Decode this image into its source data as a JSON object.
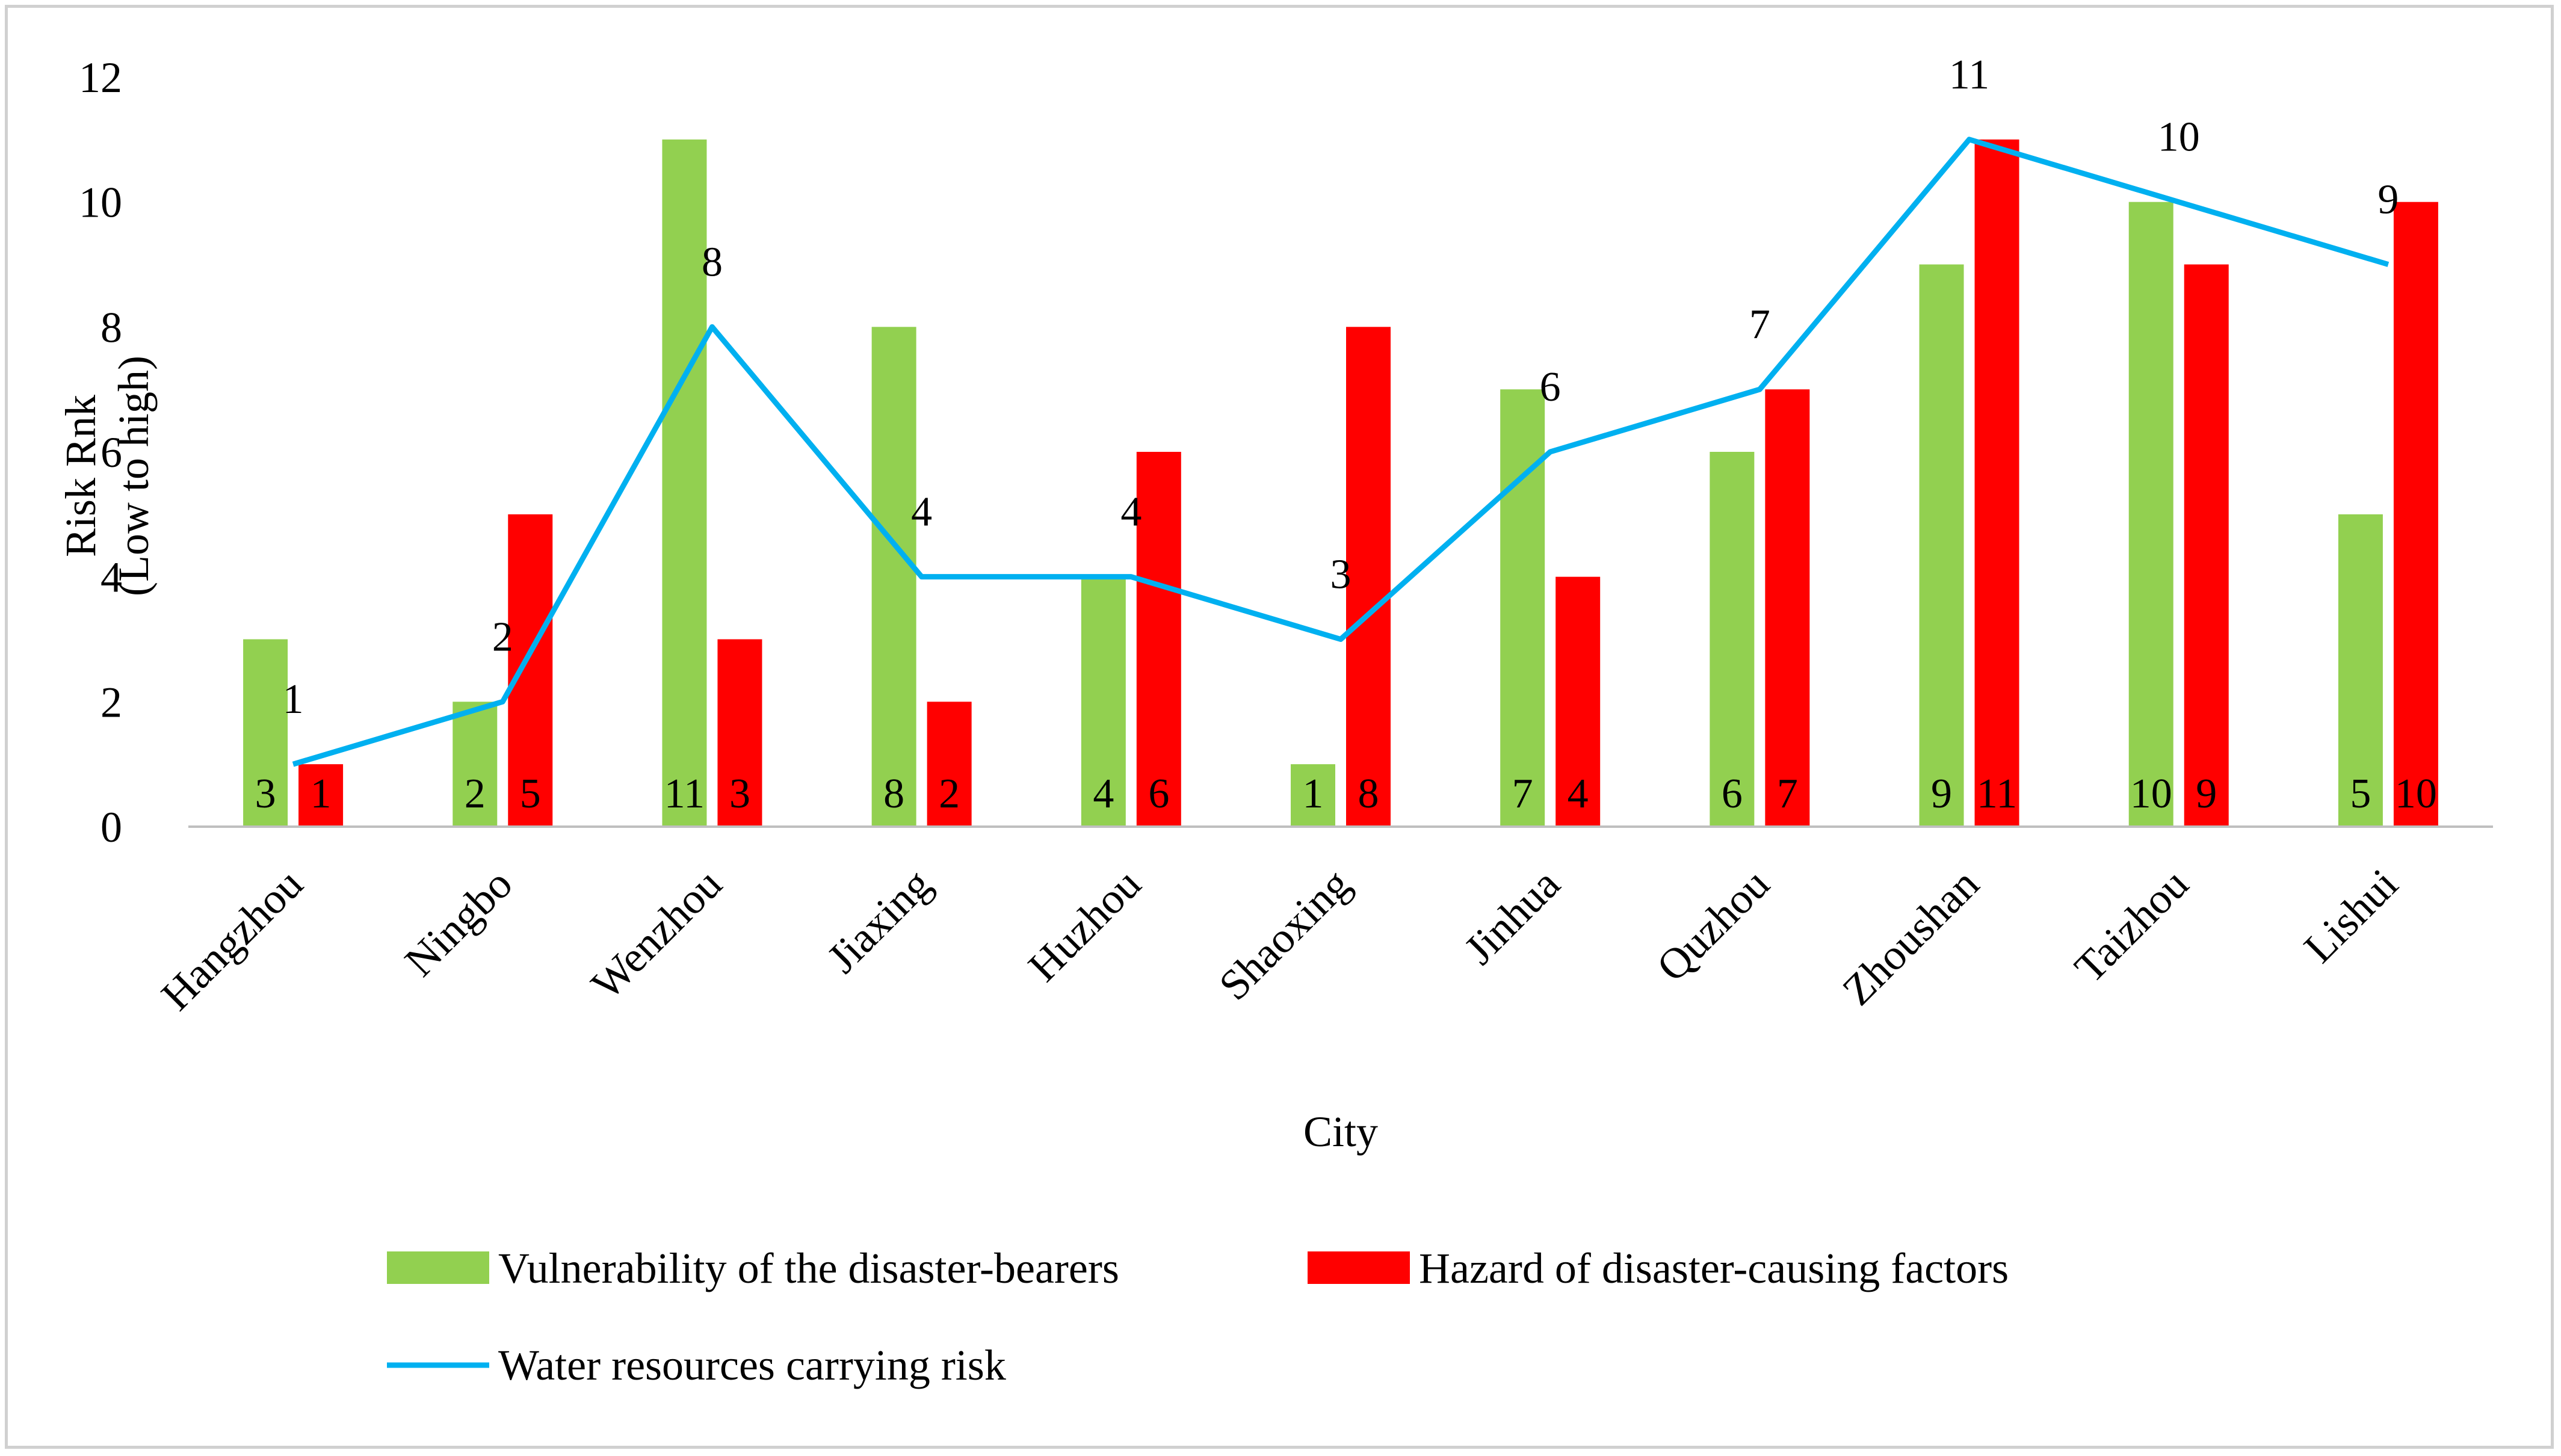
{
  "chart_data": {
    "type": "bar",
    "title": "",
    "xlabel": "City",
    "ylabel": [
      "Risk Rnk",
      "(Low to high)"
    ],
    "ylim": [
      0,
      12
    ],
    "yticks": [
      0,
      2,
      4,
      6,
      8,
      10,
      12
    ],
    "grid": false,
    "legend_position": "bottom",
    "categories": [
      "Hangzhou",
      "Ningbo",
      "Wenzhou",
      "Jiaxing",
      "Huzhou",
      "Shaoxing",
      "Jinhua",
      "Quzhou",
      "Zhoushan",
      "Taizhou",
      "Lishui"
    ],
    "series": [
      {
        "name": "Vulnerability of the disaster-bearers",
        "kind": "bar",
        "color": "#92d050",
        "values": [
          3,
          2,
          11,
          8,
          4,
          1,
          7,
          6,
          9,
          10,
          5
        ]
      },
      {
        "name": "Hazard of disaster-causing factors",
        "kind": "bar",
        "color": "#ff0000",
        "values": [
          1,
          5,
          3,
          2,
          6,
          8,
          4,
          7,
          11,
          9,
          10
        ]
      },
      {
        "name": "Water resources carrying risk",
        "kind": "line",
        "color": "#00b0f0",
        "values": [
          1,
          2,
          8,
          4,
          4,
          3,
          6,
          7,
          11,
          10,
          9
        ]
      }
    ]
  }
}
